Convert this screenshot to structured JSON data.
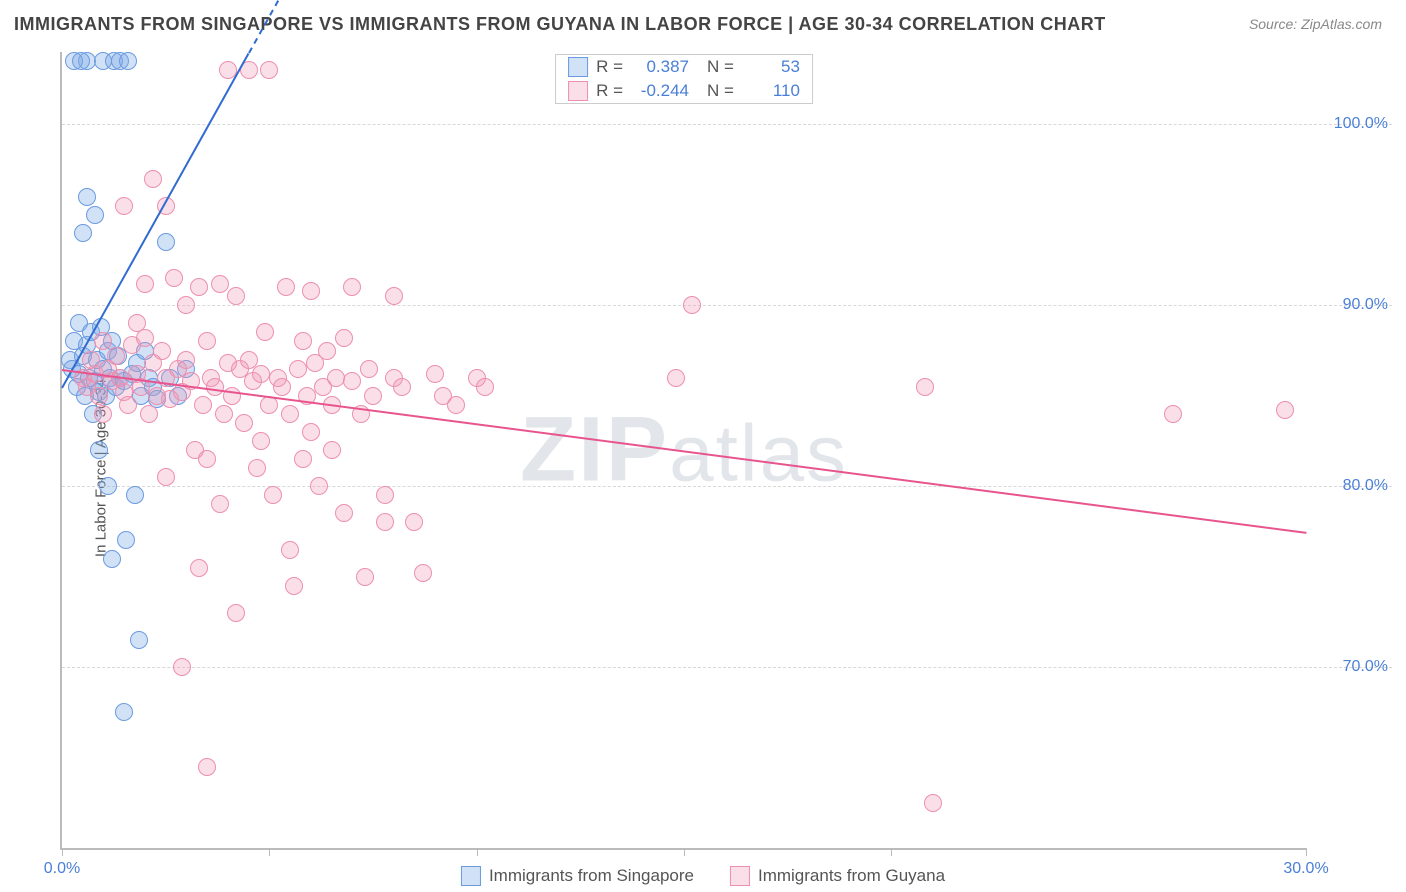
{
  "title": "IMMIGRANTS FROM SINGAPORE VS IMMIGRANTS FROM GUYANA IN LABOR FORCE | AGE 30-34 CORRELATION CHART",
  "source": "Source: ZipAtlas.com",
  "watermark": "ZIPatlas",
  "chart": {
    "type": "scatter",
    "ylabel": "In Labor Force | Age 30-34",
    "xlim": [
      0,
      30
    ],
    "ylim": [
      60,
      104
    ],
    "ytick_vals": [
      70,
      80,
      90,
      100
    ],
    "ytick_labels": [
      "70.0%",
      "80.0%",
      "90.0%",
      "100.0%"
    ],
    "xtick_vals": [
      0,
      5,
      10,
      15,
      20,
      30
    ],
    "xtick_labels": {
      "0": "0.0%",
      "30": "30.0%"
    },
    "background_color": "#ffffff",
    "grid_color": "#d8d8d8",
    "axis_color": "#bbbbbb",
    "tick_label_color": "#4a7fd8",
    "point_radius": 9,
    "series": [
      {
        "name": "Immigrants from Singapore",
        "color_fill": "rgba(122,168,228,0.35)",
        "color_stroke": "#6a9be0",
        "R": "0.387",
        "N": "53",
        "regression": {
          "x1": 0,
          "y1": 85.5,
          "x2": 4.5,
          "y2": 104,
          "color": "#2f6bd0",
          "dash_extend_x2": 5.2
        },
        "points": [
          [
            0.2,
            87.0
          ],
          [
            0.25,
            86.5
          ],
          [
            0.3,
            88.0
          ],
          [
            0.35,
            85.5
          ],
          [
            0.4,
            86.2
          ],
          [
            0.4,
            89.0
          ],
          [
            0.5,
            87.2
          ],
          [
            0.5,
            94.0
          ],
          [
            0.55,
            85.0
          ],
          [
            0.6,
            87.8
          ],
          [
            0.6,
            96.0
          ],
          [
            0.6,
            103.5
          ],
          [
            0.65,
            86.0
          ],
          [
            0.7,
            88.5
          ],
          [
            0.75,
            84.0
          ],
          [
            0.8,
            85.8
          ],
          [
            0.8,
            95.0
          ],
          [
            0.85,
            87.0
          ],
          [
            0.9,
            82.0
          ],
          [
            0.9,
            85.2
          ],
          [
            0.95,
            88.8
          ],
          [
            1.0,
            86.5
          ],
          [
            1.0,
            103.5
          ],
          [
            1.05,
            85.0
          ],
          [
            1.1,
            87.5
          ],
          [
            1.1,
            80.0
          ],
          [
            1.15,
            86.0
          ],
          [
            1.2,
            88.0
          ],
          [
            1.2,
            76.0
          ],
          [
            1.25,
            103.5
          ],
          [
            1.3,
            85.5
          ],
          [
            1.35,
            87.2
          ],
          [
            1.4,
            86.0
          ],
          [
            1.4,
            103.5
          ],
          [
            1.5,
            85.8
          ],
          [
            1.5,
            67.5
          ],
          [
            1.55,
            77.0
          ],
          [
            1.6,
            103.5
          ],
          [
            1.7,
            86.2
          ],
          [
            1.75,
            79.5
          ],
          [
            1.8,
            86.8
          ],
          [
            1.85,
            71.5
          ],
          [
            1.9,
            85.0
          ],
          [
            2.0,
            87.5
          ],
          [
            2.1,
            86.0
          ],
          [
            2.2,
            85.5
          ],
          [
            2.3,
            84.8
          ],
          [
            2.5,
            93.5
          ],
          [
            2.6,
            86.0
          ],
          [
            0.3,
            103.5
          ],
          [
            0.45,
            103.5
          ],
          [
            2.8,
            85.0
          ],
          [
            3.0,
            86.5
          ]
        ]
      },
      {
        "name": "Immigrants from Guyana",
        "color_fill": "rgba(240,148,178,0.30)",
        "color_stroke": "#ed8fb0",
        "R": "-0.244",
        "N": "110",
        "regression": {
          "x1": 0,
          "y1": 86.5,
          "x2": 30,
          "y2": 77.5,
          "color": "#e8548e"
        },
        "points": [
          [
            0.5,
            86.0
          ],
          [
            0.6,
            85.5
          ],
          [
            0.7,
            87.0
          ],
          [
            0.8,
            86.2
          ],
          [
            0.9,
            85.0
          ],
          [
            1.0,
            88.0
          ],
          [
            1.1,
            86.5
          ],
          [
            1.2,
            85.8
          ],
          [
            1.3,
            87.2
          ],
          [
            1.4,
            86.0
          ],
          [
            1.5,
            85.2
          ],
          [
            1.5,
            95.5
          ],
          [
            1.6,
            84.5
          ],
          [
            1.7,
            87.8
          ],
          [
            1.8,
            86.2
          ],
          [
            1.9,
            85.5
          ],
          [
            2.0,
            88.2
          ],
          [
            2.0,
            91.2
          ],
          [
            2.1,
            84.0
          ],
          [
            2.2,
            86.8
          ],
          [
            2.2,
            97.0
          ],
          [
            2.3,
            85.0
          ],
          [
            2.4,
            87.5
          ],
          [
            2.5,
            86.0
          ],
          [
            2.5,
            80.5
          ],
          [
            2.6,
            84.8
          ],
          [
            2.7,
            91.5
          ],
          [
            2.8,
            86.5
          ],
          [
            2.9,
            85.2
          ],
          [
            2.9,
            70.0
          ],
          [
            3.0,
            87.0
          ],
          [
            3.0,
            90.0
          ],
          [
            3.1,
            85.8
          ],
          [
            3.2,
            82.0
          ],
          [
            3.3,
            75.5
          ],
          [
            3.3,
            91.0
          ],
          [
            3.4,
            84.5
          ],
          [
            3.5,
            88.0
          ],
          [
            3.5,
            64.5
          ],
          [
            3.6,
            86.0
          ],
          [
            3.7,
            85.5
          ],
          [
            3.8,
            91.2
          ],
          [
            3.8,
            79.0
          ],
          [
            3.9,
            84.0
          ],
          [
            4.0,
            86.8
          ],
          [
            4.0,
            103.0
          ],
          [
            4.1,
            85.0
          ],
          [
            4.2,
            90.5
          ],
          [
            4.2,
            73.0
          ],
          [
            4.3,
            86.5
          ],
          [
            4.4,
            83.5
          ],
          [
            4.5,
            87.0
          ],
          [
            4.5,
            103.0
          ],
          [
            4.6,
            85.8
          ],
          [
            4.7,
            81.0
          ],
          [
            4.8,
            86.2
          ],
          [
            4.9,
            88.5
          ],
          [
            5.0,
            84.5
          ],
          [
            5.0,
            103.0
          ],
          [
            5.1,
            79.5
          ],
          [
            5.2,
            86.0
          ],
          [
            5.3,
            85.5
          ],
          [
            5.4,
            91.0
          ],
          [
            5.5,
            84.0
          ],
          [
            5.5,
            76.5
          ],
          [
            5.6,
            74.5
          ],
          [
            5.7,
            86.5
          ],
          [
            5.8,
            88.0
          ],
          [
            5.9,
            85.0
          ],
          [
            6.0,
            83.0
          ],
          [
            6.0,
            90.8
          ],
          [
            6.1,
            86.8
          ],
          [
            6.2,
            80.0
          ],
          [
            6.3,
            85.5
          ],
          [
            6.4,
            87.5
          ],
          [
            6.5,
            84.5
          ],
          [
            6.6,
            86.0
          ],
          [
            6.8,
            88.2
          ],
          [
            6.8,
            78.5
          ],
          [
            7.0,
            85.8
          ],
          [
            7.0,
            91.0
          ],
          [
            7.2,
            84.0
          ],
          [
            7.3,
            75.0
          ],
          [
            7.4,
            86.5
          ],
          [
            7.5,
            85.0
          ],
          [
            7.8,
            79.5
          ],
          [
            7.8,
            78.0
          ],
          [
            8.0,
            90.5
          ],
          [
            8.0,
            86.0
          ],
          [
            8.2,
            85.5
          ],
          [
            8.5,
            78.0
          ],
          [
            8.7,
            75.2
          ],
          [
            9.0,
            86.2
          ],
          [
            9.2,
            85.0
          ],
          [
            9.5,
            84.5
          ],
          [
            10.0,
            86.0
          ],
          [
            10.2,
            85.5
          ],
          [
            15.2,
            90.0
          ],
          [
            14.8,
            86.0
          ],
          [
            20.8,
            85.5
          ],
          [
            21.0,
            62.5
          ],
          [
            26.8,
            84.0
          ],
          [
            29.5,
            84.2
          ],
          [
            2.5,
            95.5
          ],
          [
            1.8,
            89.0
          ],
          [
            3.5,
            81.5
          ],
          [
            4.8,
            82.5
          ],
          [
            5.8,
            81.5
          ],
          [
            6.5,
            82.0
          ],
          [
            1.0,
            84.0
          ]
        ]
      }
    ]
  }
}
